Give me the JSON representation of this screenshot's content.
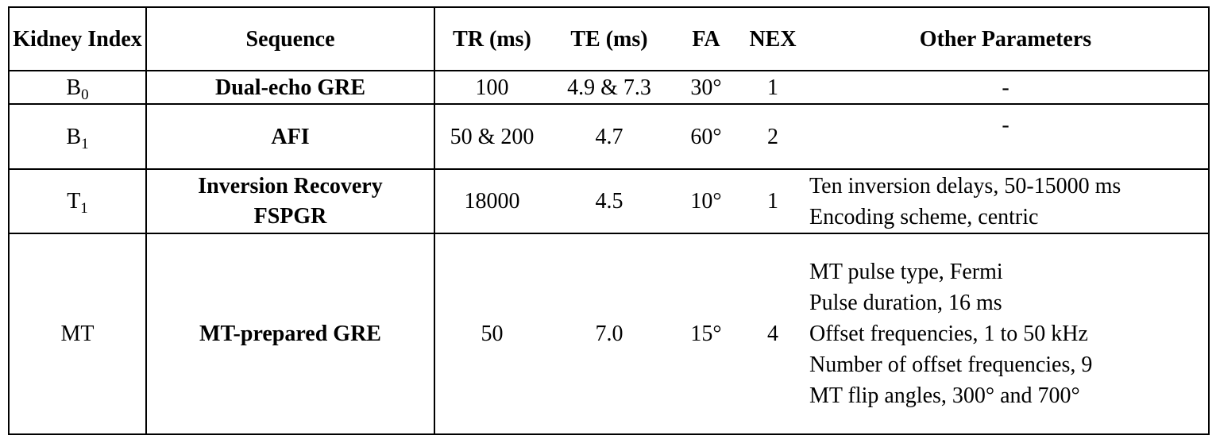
{
  "table": {
    "header": [
      "Kidney Index",
      "Sequence",
      "TR (ms)",
      "TE (ms)",
      "FA",
      "NEX",
      "Other Parameters"
    ],
    "rows": [
      {
        "index": "B",
        "index_sub": "0",
        "sequence": "Dual-echo GRE",
        "tr": "100",
        "te": "4.9 & 7.3",
        "fa": "30°",
        "nex": "1",
        "other": [
          "-"
        ]
      },
      {
        "index": "B",
        "index_sub": "1",
        "sequence": "AFI",
        "tr": "50 & 200",
        "te": "4.7",
        "fa": "60°",
        "nex": "2",
        "other": [
          "-"
        ]
      },
      {
        "index": "T",
        "index_sub": "1",
        "sequence": "Inversion Recovery FSPGR",
        "tr": "18000",
        "te": "4.5",
        "fa": "10°",
        "nex": "1",
        "other": [
          "Ten inversion delays, 50-15000 ms",
          "Encoding scheme, centric"
        ]
      },
      {
        "index": "MT",
        "sequence": "MT-prepared GRE",
        "tr": "50",
        "te": "7.0",
        "fa": "15°",
        "nex": "4",
        "other": [
          "MT pulse type, Fermi",
          "Pulse duration, 16 ms",
          "Offset frequencies, 1 to 50 kHz",
          "Number of offset frequencies,  9",
          "MT flip angles, 300° and 700°"
        ]
      }
    ]
  }
}
